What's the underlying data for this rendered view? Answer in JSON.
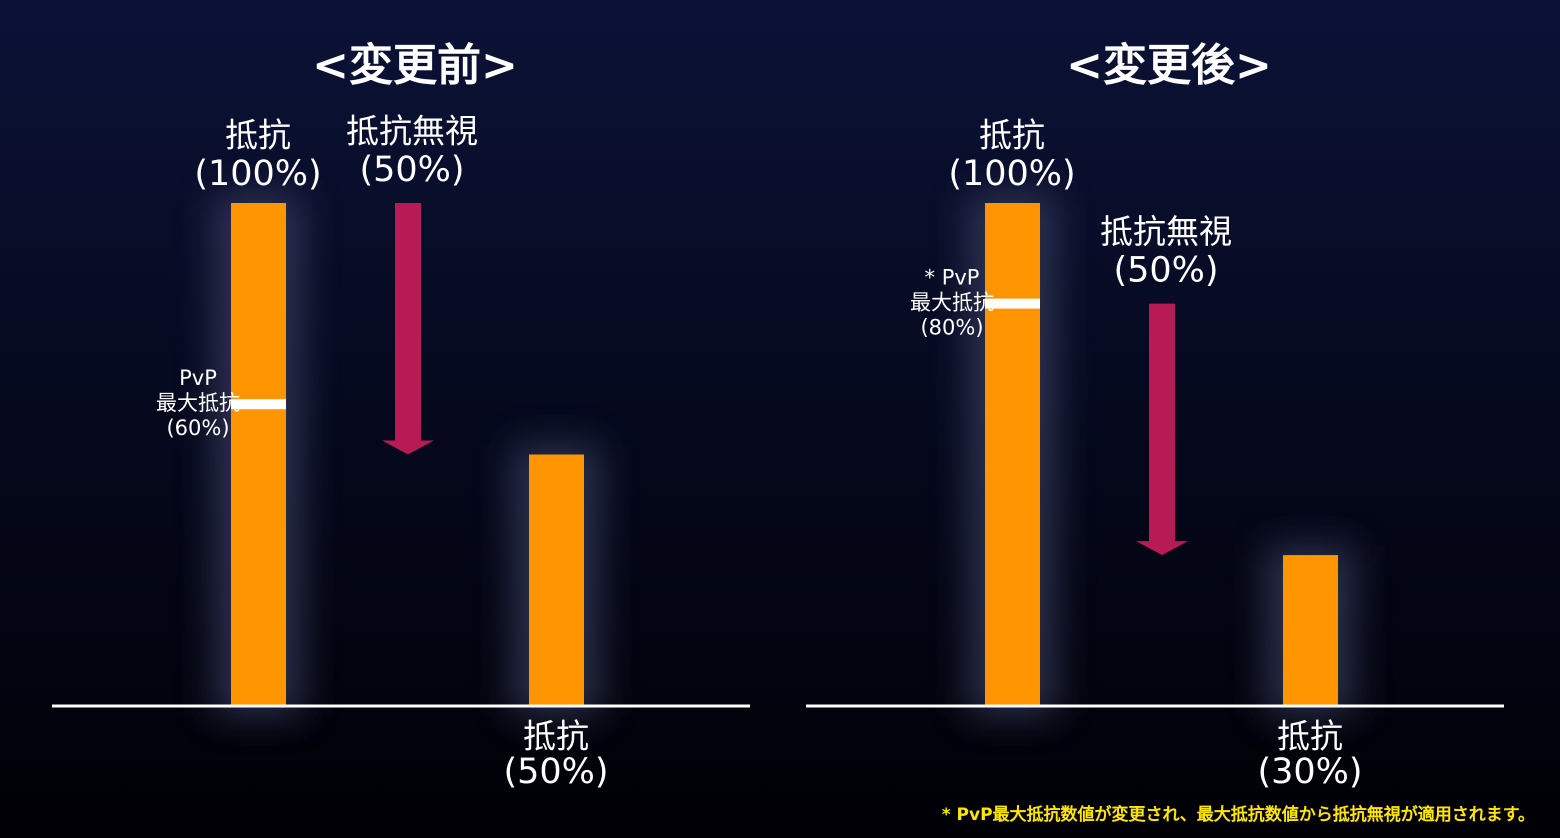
{
  "footnote": "* PvP最大抵抗数値が変更され、最大抵抗数値から抵抗無視が適用されます。",
  "panels": [
    {
      "title": "<変更前>",
      "bars": [
        {
          "label": "抵抗",
          "value_label": "(100%)",
          "value": 100
        },
        {
          "label": "抵抗",
          "value_label": "(50%)",
          "value": 50
        }
      ],
      "pvp": {
        "lines": [
          "PvP",
          "最大抵抗",
          "(60%)"
        ],
        "value": 60
      },
      "arrow": {
        "label": "抵抗無視",
        "value_label": "(50%)",
        "value": 50
      }
    },
    {
      "title": "<変更後>",
      "bars": [
        {
          "label": "抵抗",
          "value_label": "(100%)",
          "value": 100
        },
        {
          "label": "抵抗",
          "value_label": "(30%)",
          "value": 30
        }
      ],
      "pvp": {
        "lines": [
          "* PvP",
          "最大抵抗",
          "(80%)"
        ],
        "value": 80
      },
      "arrow": {
        "label": "抵抗無視",
        "value_label": "(50%)",
        "value": 50
      }
    }
  ]
}
